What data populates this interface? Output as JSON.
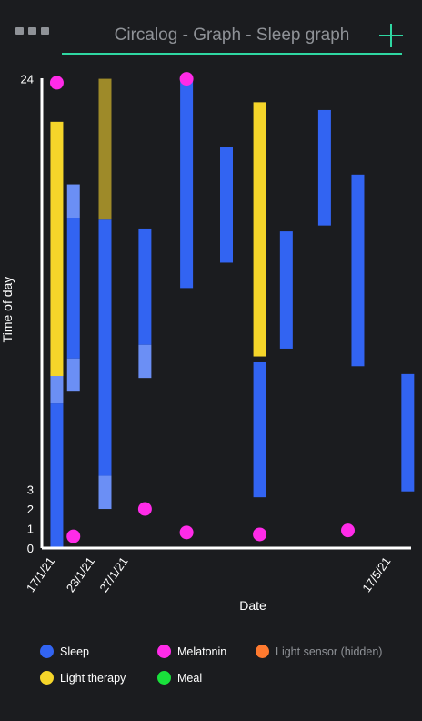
{
  "header": {
    "title": "Circalog - Graph - Sleep graph",
    "menu_icon": "more-horizontal-icon",
    "add_icon": "plus-icon"
  },
  "colors": {
    "accent": "#2fd7a2",
    "sleep": "#3264f2",
    "sleep_light": "#6b8ff5",
    "light_therapy": "#f5d52a",
    "light_therapy_dim": "#9e8a29",
    "melatonin": "#ff2be8",
    "light_sensor": "#ff7a2f",
    "meal": "#19e13b",
    "axis": "#ffffff"
  },
  "chart_data": {
    "type": "range-bar",
    "title": "",
    "xlabel": "Date",
    "ylabel": "Time of day",
    "y_tick_labels": [
      "0",
      "1",
      "2",
      "3",
      "24"
    ],
    "y_ticks": [
      0,
      1,
      2,
      3,
      24
    ],
    "ylim": [
      0,
      24.4
    ],
    "x_tick_labels": [
      "17/1/21",
      "23/1/21",
      "27/1/21",
      "17/5/21"
    ],
    "x_ticks": [
      0.3,
      1.5,
      2.5,
      10.4
    ],
    "xlim": [
      -0.1,
      11.0
    ],
    "legend": {
      "placement": "bottom"
    },
    "series": [
      {
        "name": "Sleep",
        "kind": "range",
        "bars": [
          {
            "x": 0.35,
            "start": 0.0,
            "end": 7.4
          },
          {
            "x": 0.35,
            "start": 7.4,
            "end": 9.0,
            "light": true
          },
          {
            "x": 0.85,
            "start": 8.0,
            "end": 9.7,
            "light": true
          },
          {
            "x": 0.85,
            "start": 9.7,
            "end": 16.9
          },
          {
            "x": 0.85,
            "start": 16.9,
            "end": 18.6,
            "light": true
          },
          {
            "x": 1.8,
            "start": 2.0,
            "end": 3.7,
            "light": true
          },
          {
            "x": 1.8,
            "start": 3.7,
            "end": 16.8
          },
          {
            "x": 3.0,
            "start": 8.7,
            "end": 10.4,
            "light": true
          },
          {
            "x": 3.0,
            "start": 10.4,
            "end": 16.3
          },
          {
            "x": 4.25,
            "start": 13.3,
            "end": 24.0
          },
          {
            "x": 5.45,
            "start": 14.6,
            "end": 20.5
          },
          {
            "x": 6.45,
            "start": 2.6,
            "end": 9.5
          },
          {
            "x": 7.25,
            "start": 10.2,
            "end": 16.2
          },
          {
            "x": 8.4,
            "start": 16.5,
            "end": 22.4
          },
          {
            "x": 9.4,
            "start": 9.3,
            "end": 19.1
          },
          {
            "x": 10.9,
            "start": 2.9,
            "end": 8.9
          }
        ]
      },
      {
        "name": "Light therapy",
        "kind": "range",
        "bars": [
          {
            "x": 0.35,
            "start": 8.8,
            "end": 21.8
          },
          {
            "x": 1.8,
            "start": 16.8,
            "end": 24.0,
            "dim": true
          },
          {
            "x": 6.45,
            "start": 9.8,
            "end": 22.8
          }
        ]
      },
      {
        "name": "Melatonin",
        "kind": "point",
        "points": [
          {
            "x": 0.35,
            "y": 23.8
          },
          {
            "x": 0.85,
            "y": 0.6
          },
          {
            "x": 3.0,
            "y": 2.0
          },
          {
            "x": 4.25,
            "y": 0.8
          },
          {
            "x": 4.25,
            "y": 24.0
          },
          {
            "x": 6.45,
            "y": 0.7
          },
          {
            "x": 9.1,
            "y": 0.9
          }
        ]
      }
    ]
  },
  "legend": {
    "items": [
      {
        "label": "Sleep",
        "color": "#3264f2"
      },
      {
        "label": "Melatonin",
        "color": "#ff2be8"
      },
      {
        "label": "Light sensor (hidden)",
        "color": "#ff7a2f"
      },
      {
        "label": "Light therapy",
        "color": "#f5d52a"
      },
      {
        "label": "Meal",
        "color": "#19e13b"
      }
    ]
  }
}
